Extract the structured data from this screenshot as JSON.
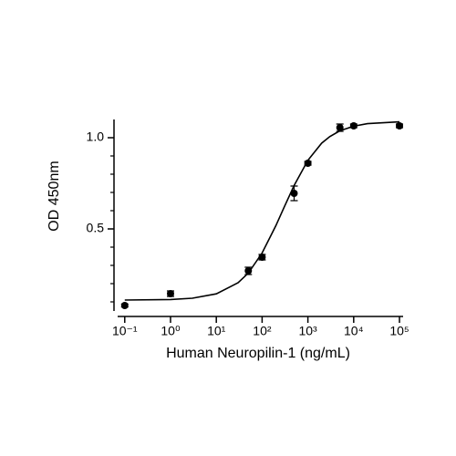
{
  "chart_data": {
    "type": "scatter",
    "x_label": "Human Neuropilin-1 (ng/mL)",
    "y_label": "OD 450nm",
    "xscale": "log",
    "xlim": [
      0.07,
      120000
    ],
    "ylim": [
      0.05,
      1.1
    ],
    "xticks": [
      {
        "value": 0.1,
        "label": "10⁻¹"
      },
      {
        "value": 1,
        "label": "10⁰"
      },
      {
        "value": 10,
        "label": "10¹"
      },
      {
        "value": 100,
        "label": "10²"
      },
      {
        "value": 1000,
        "label": "10³"
      },
      {
        "value": 10000,
        "label": "10⁴"
      },
      {
        "value": 100000,
        "label": "10⁵"
      }
    ],
    "yticks": [
      0.5,
      {
        "value": 1,
        "label": "1.0"
      }
    ],
    "yminor_ticks": [
      0.1,
      0.2,
      0.3,
      0.4,
      0.6,
      0.7,
      0.8,
      0.9
    ],
    "color": "#000000",
    "x": [
      0.1,
      1,
      50,
      100,
      500,
      1000,
      5000,
      10000,
      100000
    ],
    "values": [
      0.08,
      0.145,
      0.27,
      0.345,
      0.695,
      0.86,
      1.055,
      1.065,
      1.065
    ],
    "errors": [
      0.008,
      0.015,
      0.02,
      0.015,
      0.04,
      0.01,
      0.02,
      0.01,
      0.01
    ],
    "fit": {
      "x": [
        0.1,
        1,
        3,
        10,
        30,
        50,
        100,
        200,
        300,
        500,
        1000,
        2000,
        3000,
        5000,
        10000,
        20000,
        100000
      ],
      "values": [
        0.11,
        0.113,
        0.12,
        0.144,
        0.205,
        0.258,
        0.368,
        0.518,
        0.617,
        0.738,
        0.876,
        0.97,
        1.006,
        1.038,
        1.063,
        1.077,
        1.087
      ]
    }
  }
}
